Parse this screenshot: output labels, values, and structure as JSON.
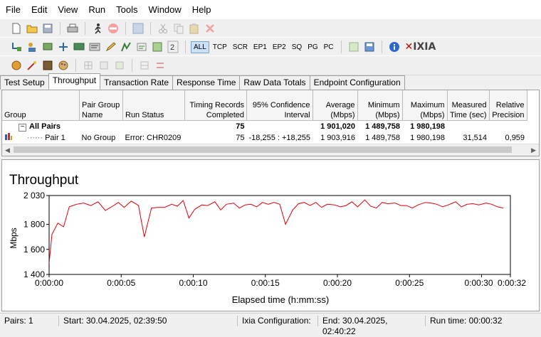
{
  "menu": [
    "File",
    "Edit",
    "View",
    "Run",
    "Tools",
    "Window",
    "Help"
  ],
  "toolbar": {
    "protocol_buttons": [
      "ALL",
      "TCP",
      "SCR",
      "EP1",
      "EP2",
      "SQ",
      "PG",
      "PC"
    ],
    "brand": "IXIA"
  },
  "tabs": [
    "Test Setup",
    "Throughput",
    "Transaction Rate",
    "Response Time",
    "Raw Data Totals",
    "Endpoint Configuration"
  ],
  "table": {
    "headers": [
      "Group",
      "Pair Group Name",
      "Run Status",
      "Timing Records Completed",
      "95% Confidence Interval",
      "Average (Mbps)",
      "Minimum (Mbps)",
      "Maximum (Mbps)",
      "Measured Time (sec)",
      "Relative Precision"
    ],
    "all_pairs": {
      "label": "All Pairs",
      "records": "75",
      "average": "1 901,020",
      "minimum": "1 489,758",
      "maximum": "1 980,198"
    },
    "pair1": {
      "label": "Pair 1",
      "group": "No Group",
      "status": "Error:  CHR0209",
      "records": "75",
      "ci": "-18,255 : +18,255",
      "average": "1 903,916",
      "minimum": "1 489,758",
      "maximum": "1 980,198",
      "time": "31,514",
      "precision": "0,959"
    }
  },
  "chart_data": {
    "type": "line",
    "title": "Throughput",
    "xlabel": "Elapsed time (h:mm:ss)",
    "ylabel": "Mbps",
    "ylim": [
      1400,
      2030
    ],
    "yticks": [
      "1 400",
      "1 600",
      "1 800",
      "2 030"
    ],
    "xticks": [
      "0:00:00",
      "0:00:05",
      "0:00:10",
      "0:00:15",
      "0:00:20",
      "0:00:25",
      "0:00:30",
      "0:00:32"
    ],
    "color": "#e0000a",
    "x": [
      0,
      0.2,
      0.6,
      1.0,
      1.4,
      1.9,
      2.4,
      2.9,
      3.4,
      3.9,
      4.4,
      4.8,
      5.2,
      5.7,
      6.2,
      6.6,
      7.1,
      7.5,
      8.0,
      8.5,
      8.9,
      9.3,
      9.7,
      10.1,
      10.6,
      11.0,
      11.5,
      11.9,
      12.3,
      12.8,
      13.2,
      13.6,
      14.0,
      14.4,
      14.8,
      15.2,
      15.6,
      16.0,
      16.4,
      16.9,
      17.3,
      17.7,
      18.1,
      18.5,
      18.9,
      19.3,
      19.8,
      20.2,
      20.6,
      21.0,
      21.4,
      21.9,
      22.3,
      22.7,
      23.1,
      23.5,
      24.0,
      24.4,
      24.8,
      25.2,
      25.6,
      26.1,
      26.5,
      26.9,
      27.3,
      27.7,
      28.2,
      28.6,
      29.0,
      29.4,
      29.8,
      30.3,
      30.7,
      31.1,
      31.5
    ],
    "y": [
      1490,
      1720,
      1810,
      1780,
      1940,
      1960,
      1970,
      1950,
      1980,
      1910,
      1945,
      1975,
      1935,
      1985,
      1950,
      1700,
      1930,
      1935,
      1935,
      1960,
      1945,
      1990,
      1850,
      1920,
      1955,
      1950,
      1980,
      1915,
      1960,
      1970,
      1930,
      1955,
      1960,
      1940,
      1975,
      1960,
      1975,
      1960,
      1800,
      1915,
      1965,
      1975,
      1950,
      1975,
      1935,
      1960,
      1955,
      1940,
      1950,
      1980,
      1940,
      1995,
      1945,
      1930,
      1975,
      1965,
      1970,
      1950,
      1950,
      1930,
      1955,
      1975,
      1970,
      1960,
      1940,
      1955,
      1980,
      1940,
      1960,
      1965,
      1955,
      1970,
      1960,
      1940,
      1930
    ]
  },
  "status": {
    "pairs": "Pairs: 1",
    "start": "Start: 30.04.2025, 02:39:50",
    "ixia": "Ixia Configuration:",
    "end": "End: 30.04.2025, 02:40:22",
    "runtime": "Run time: 00:00:32"
  }
}
